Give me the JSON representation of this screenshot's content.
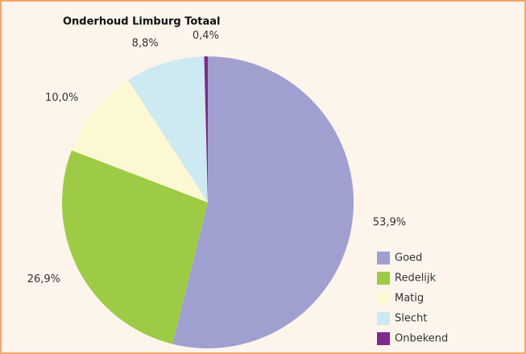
{
  "chart_data": {
    "type": "pie",
    "title": "Onderhoud Limburg Totaal",
    "categories": [
      "Goed",
      "Redelijk",
      "Matig",
      "Slecht",
      "Onbekend"
    ],
    "values": [
      53.9,
      26.9,
      10.0,
      8.8,
      0.4
    ],
    "value_labels": [
      "53,9%",
      "26,9%",
      "10,0%",
      "8,8%",
      "0,4%"
    ],
    "colors": [
      "#a0a0d0",
      "#9dcb45",
      "#fcf8d2",
      "#cdeaf2",
      "#7d2a8c"
    ],
    "legend": "lower right"
  }
}
